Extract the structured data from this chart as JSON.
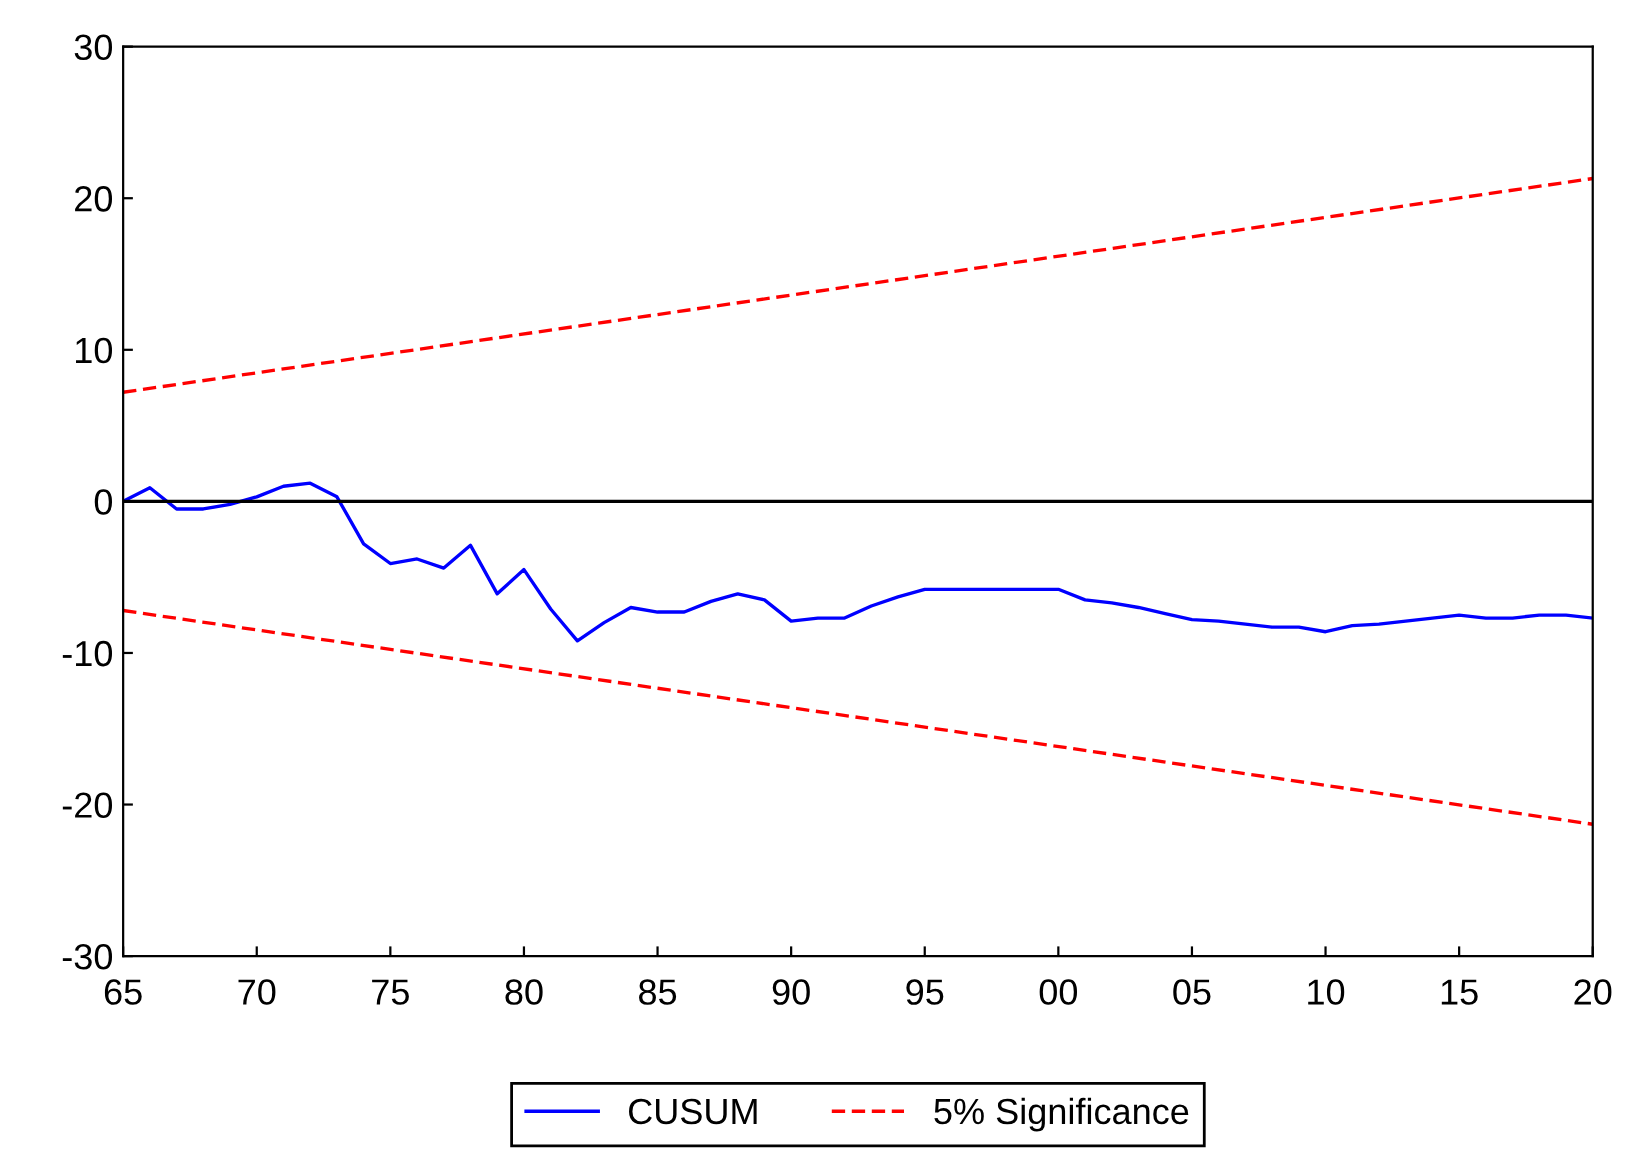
{
  "chart_data": {
    "type": "line",
    "xlim": [
      1965,
      2020
    ],
    "ylim": [
      -30,
      30
    ],
    "xticks": [
      {
        "value": 1965,
        "label": "65"
      },
      {
        "value": 1970,
        "label": "70"
      },
      {
        "value": 1975,
        "label": "75"
      },
      {
        "value": 1980,
        "label": "80"
      },
      {
        "value": 1985,
        "label": "85"
      },
      {
        "value": 1990,
        "label": "90"
      },
      {
        "value": 1995,
        "label": "95"
      },
      {
        "value": 2000,
        "label": "00"
      },
      {
        "value": 2005,
        "label": "05"
      },
      {
        "value": 2010,
        "label": "10"
      },
      {
        "value": 2015,
        "label": "15"
      },
      {
        "value": 2020,
        "label": "20"
      }
    ],
    "yticks": [
      -30,
      -20,
      -10,
      0,
      10,
      20,
      30
    ],
    "grid": false,
    "legend": "bottom",
    "ref_lines": [
      {
        "axis": "y",
        "value": 0,
        "color": "#000000",
        "line_style": "solid"
      }
    ],
    "series": [
      {
        "name": "CUSUM",
        "color": "#0000ff",
        "line_style": "solid",
        "x": [
          1965,
          1966,
          1967,
          1968,
          1969,
          1970,
          1971,
          1972,
          1973,
          1974,
          1975,
          1976,
          1977,
          1978,
          1979,
          1980,
          1981,
          1982,
          1983,
          1984,
          1985,
          1986,
          1987,
          1988,
          1989,
          1990,
          1991,
          1992,
          1993,
          1994,
          1995,
          1996,
          1997,
          1998,
          1999,
          2000,
          2001,
          2002,
          2003,
          2004,
          2005,
          2006,
          2007,
          2008,
          2009,
          2010,
          2011,
          2012,
          2013,
          2014,
          2015,
          2016,
          2017,
          2018,
          2019,
          2020
        ],
        "values": [
          0,
          0.9,
          -0.5,
          -0.5,
          -0.2,
          0.3,
          1.0,
          1.2,
          0.3,
          -2.8,
          -4.1,
          -3.8,
          -4.4,
          -2.9,
          -6.1,
          -4.5,
          -7.1,
          -9.2,
          -8.0,
          -7.0,
          -7.3,
          -7.3,
          -6.6,
          -6.1,
          -6.5,
          -7.9,
          -7.7,
          -7.7,
          -6.9,
          -6.3,
          -5.8,
          -5.8,
          -5.8,
          -5.8,
          -5.8,
          -5.8,
          -6.5,
          -6.7,
          -7.0,
          -7.4,
          -7.8,
          -7.9,
          -8.1,
          -8.3,
          -8.3,
          -8.6,
          -8.2,
          -8.1,
          -7.9,
          -7.7,
          -7.5,
          -7.7,
          -7.7,
          -7.5,
          -7.5,
          -7.7
        ]
      },
      {
        "name": "5% Significance",
        "color": "#ff0000",
        "line_style": "dashed",
        "x": [
          1965,
          2020
        ],
        "values": [
          7.2,
          21.3
        ]
      },
      {
        "color": "#ff0000",
        "line_style": "dashed",
        "x": [
          1965,
          2020
        ],
        "values": [
          -7.2,
          -21.3
        ]
      }
    ]
  }
}
